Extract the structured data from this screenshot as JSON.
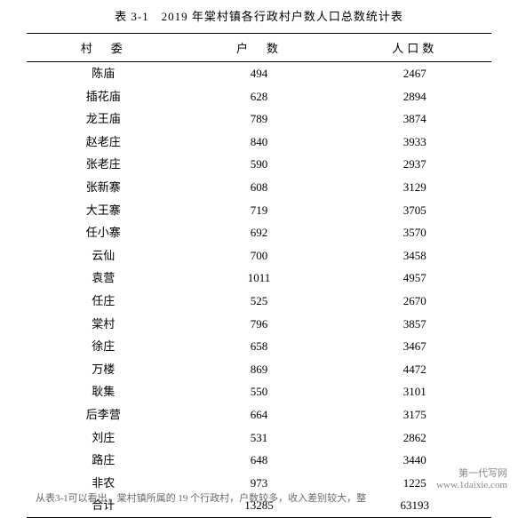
{
  "table": {
    "title": "表 3-1　2019 年棠村镇各行政村户数人口总数统计表",
    "columns": [
      "村　委",
      "户　数",
      "人口数"
    ],
    "rows": [
      {
        "village": "陈庙",
        "households": "494",
        "population": "2467"
      },
      {
        "village": "插花庙",
        "households": "628",
        "population": "2894"
      },
      {
        "village": "龙王庙",
        "households": "789",
        "population": "3874"
      },
      {
        "village": "赵老庄",
        "households": "840",
        "population": "3933"
      },
      {
        "village": "张老庄",
        "households": "590",
        "population": "2937"
      },
      {
        "village": "张新寨",
        "households": "608",
        "population": "3129"
      },
      {
        "village": "大王寨",
        "households": "719",
        "population": "3705"
      },
      {
        "village": "任小寨",
        "households": "692",
        "population": "3570"
      },
      {
        "village": "云仙",
        "households": "700",
        "population": "3458"
      },
      {
        "village": "袁营",
        "households": "1011",
        "population": "4957"
      },
      {
        "village": "任庄",
        "households": "525",
        "population": "2670"
      },
      {
        "village": "棠村",
        "households": "796",
        "population": "3857"
      },
      {
        "village": "徐庄",
        "households": "658",
        "population": "3467"
      },
      {
        "village": "万楼",
        "households": "869",
        "population": "4472"
      },
      {
        "village": "耿集",
        "households": "550",
        "population": "3101"
      },
      {
        "village": "后李营",
        "households": "664",
        "population": "3175"
      },
      {
        "village": "刘庄",
        "households": "531",
        "population": "2862"
      },
      {
        "village": "路庄",
        "households": "648",
        "population": "3440"
      },
      {
        "village": "非农",
        "households": "973",
        "population": "1225"
      },
      {
        "village": "合计",
        "households": "13285",
        "population": "63193"
      }
    ]
  },
  "footer_partial": "从表3-1可以看出，棠村镇所属的 19 个行政村，户数较多，收入差别较大，整",
  "watermark": {
    "line1": "第一代写网",
    "line2": "www.1daixie.com"
  }
}
